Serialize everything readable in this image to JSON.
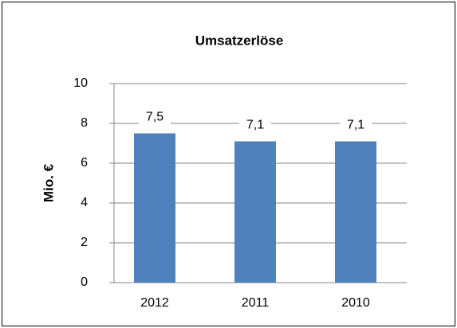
{
  "chart_data": {
    "type": "bar",
    "title": "Umsatzerlöse",
    "y_label": "Mio. €",
    "categories": [
      "2012",
      "2011",
      "2010"
    ],
    "values": [
      7.5,
      7.1,
      7.1
    ],
    "value_labels": [
      "7,5",
      "7,1",
      "7,1"
    ],
    "color": "#4f81bd",
    "ylim": [
      0,
      10
    ],
    "yticks": [
      0,
      2,
      4,
      6,
      8,
      10
    ],
    "grid": true
  }
}
